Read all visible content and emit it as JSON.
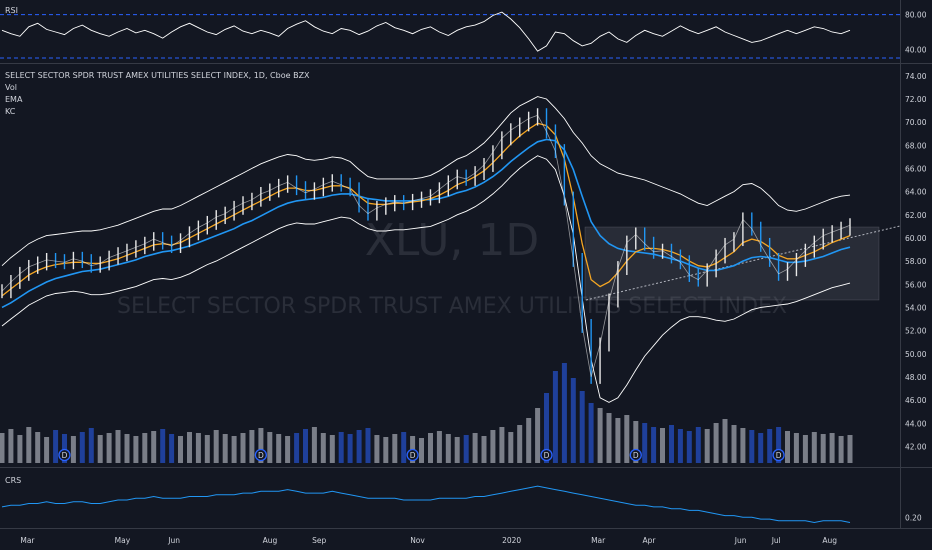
{
  "header": {
    "symbol_line": "SELECT SECTOR SPDR TRUST AMEX UTILITIES SELECT INDEX, 1D, Cboe BZX",
    "studies": [
      "Vol",
      "EMA",
      "KC"
    ],
    "rsi_label": "RSI",
    "crs_label": "CRS"
  },
  "watermark": {
    "ticker": "XLU, 1D",
    "name": "SELECT SECTOR SPDR TRUST AMEX UTILITIES SELECT INDEX"
  },
  "colors": {
    "background": "#131722",
    "price_bar": "#e8e8e8",
    "price_bar_down": "#2196f3",
    "ema_fast": "#f5a623",
    "ema_slow": "#2196f3",
    "keltner": "#ffffff",
    "rsi_line": "#ffffff",
    "crs_line": "#2196f3",
    "volume_up": "#cfd3dc",
    "volume_down": "#2962ff",
    "dividend_marker": "#2962ff"
  },
  "chart_data": [
    {
      "type": "line",
      "name": "RSI pane",
      "y_ticks": [
        "80.00",
        "40.00"
      ],
      "ylim": [
        30,
        90
      ],
      "reference_levels": [
        80,
        30
      ],
      "series": [
        {
          "values": [
            62,
            58,
            55,
            66,
            70,
            63,
            60,
            57,
            64,
            68,
            62,
            58,
            55,
            60,
            64,
            59,
            62,
            58,
            53,
            60,
            66,
            70,
            65,
            60,
            57,
            63,
            67,
            61,
            58,
            62,
            59,
            55,
            64,
            69,
            73,
            66,
            61,
            58,
            64,
            62,
            57,
            61,
            67,
            71,
            65,
            62,
            58,
            63,
            66,
            60,
            56,
            62,
            66,
            68,
            72,
            79,
            83,
            75,
            65,
            52,
            38,
            44,
            60,
            58,
            50,
            44,
            47,
            55,
            60,
            52,
            48,
            56,
            62,
            58,
            55,
            61,
            67,
            62,
            58,
            62,
            66,
            60,
            56,
            52,
            48,
            50,
            54,
            58,
            62,
            58,
            62,
            66,
            64,
            60,
            58,
            62
          ]
        }
      ]
    },
    {
      "type": "line",
      "name": "Price pane",
      "x_ticks": [
        "Mar",
        "May",
        "Jun",
        "Aug",
        "Sep",
        "Nov",
        "2020",
        "Mar",
        "Apr",
        "Jun",
        "Jul",
        "Aug"
      ],
      "y_ticks": [
        "74.00",
        "72.00",
        "70.00",
        "68.00",
        "66.00",
        "64.00",
        "62.00",
        "60.00",
        "58.00",
        "56.00",
        "54.00",
        "52.00",
        "50.00",
        "48.00",
        "46.00",
        "44.00",
        "42.00"
      ],
      "ylim": [
        41,
        74.5
      ],
      "dividend_marks": [
        "D",
        "D",
        "D",
        "D",
        "D",
        "D"
      ],
      "series": [
        {
          "name": "XLU",
          "values": [
            55.4,
            56.2,
            56.9,
            57.5,
            57.8,
            58.1,
            58.0,
            57.9,
            58.2,
            58.0,
            57.6,
            57.8,
            58.3,
            58.6,
            58.9,
            59.2,
            59.5,
            59.9,
            59.6,
            59.3,
            59.8,
            60.4,
            60.9,
            61.3,
            61.8,
            62.1,
            62.6,
            63.0,
            63.3,
            63.8,
            64.1,
            64.5,
            64.8,
            64.3,
            63.9,
            64.2,
            64.6,
            64.9,
            64.6,
            64.2,
            62.8,
            62.1,
            62.6,
            62.9,
            63.1,
            63.0,
            63.2,
            63.4,
            63.6,
            64.2,
            64.8,
            65.3,
            65.1,
            65.6,
            66.3,
            67.4,
            68.6,
            69.3,
            69.8,
            70.3,
            70.6,
            69.2,
            67.5,
            63.4,
            58.1,
            52.4,
            48.0,
            50.8,
            54.6,
            57.4,
            59.6,
            60.3,
            59.5,
            58.8,
            58.9,
            58.4,
            57.9,
            56.8,
            56.4,
            57.2,
            58.4,
            59.4,
            59.9,
            61.6,
            60.8,
            59.4,
            58.1,
            56.9,
            57.3,
            58.1,
            58.9,
            59.6,
            60.2,
            60.5,
            60.8,
            61.1
          ]
        },
        {
          "name": "EMA fast",
          "values": [
            55.0,
            55.6,
            56.2,
            56.8,
            57.2,
            57.5,
            57.7,
            57.8,
            57.9,
            57.9,
            57.8,
            57.8,
            58.0,
            58.2,
            58.5,
            58.8,
            59.1,
            59.4,
            59.5,
            59.4,
            59.6,
            60.0,
            60.4,
            60.8,
            61.2,
            61.6,
            62.0,
            62.4,
            62.8,
            63.2,
            63.6,
            64.0,
            64.3,
            64.3,
            64.1,
            64.1,
            64.3,
            64.5,
            64.5,
            64.3,
            63.6,
            63.0,
            62.9,
            62.9,
            63.0,
            63.0,
            63.1,
            63.2,
            63.4,
            63.7,
            64.1,
            64.6,
            64.9,
            65.3,
            65.8,
            66.5,
            67.3,
            68.1,
            68.8,
            69.4,
            69.9,
            69.7,
            68.9,
            66.8,
            63.5,
            59.5,
            56.4,
            55.8,
            56.2,
            57.0,
            58.0,
            58.8,
            59.1,
            59.1,
            59.0,
            58.8,
            58.5,
            58.0,
            57.6,
            57.5,
            57.8,
            58.3,
            58.8,
            59.6,
            59.9,
            59.7,
            59.2,
            58.5,
            58.2,
            58.2,
            58.5,
            58.8,
            59.2,
            59.6,
            59.9,
            60.2
          ]
        },
        {
          "name": "EMA slow",
          "values": [
            54.0,
            54.4,
            54.9,
            55.4,
            55.8,
            56.2,
            56.5,
            56.7,
            56.9,
            57.1,
            57.2,
            57.3,
            57.5,
            57.7,
            57.9,
            58.1,
            58.4,
            58.6,
            58.8,
            58.9,
            59.1,
            59.3,
            59.6,
            59.9,
            60.2,
            60.5,
            60.8,
            61.2,
            61.5,
            61.9,
            62.3,
            62.7,
            63.0,
            63.2,
            63.3,
            63.4,
            63.5,
            63.7,
            63.8,
            63.8,
            63.6,
            63.4,
            63.3,
            63.2,
            63.2,
            63.2,
            63.2,
            63.3,
            63.3,
            63.4,
            63.6,
            63.9,
            64.1,
            64.4,
            64.8,
            65.3,
            65.9,
            66.6,
            67.2,
            67.8,
            68.3,
            68.5,
            68.4,
            67.6,
            65.9,
            63.6,
            61.4,
            60.2,
            59.5,
            59.1,
            58.9,
            58.8,
            58.7,
            58.6,
            58.4,
            58.2,
            58.0,
            57.7,
            57.4,
            57.2,
            57.2,
            57.4,
            57.6,
            58.0,
            58.3,
            58.4,
            58.3,
            58.1,
            57.9,
            57.9,
            58.0,
            58.2,
            58.4,
            58.7,
            59.0,
            59.2
          ]
        },
        {
          "name": "KC upper",
          "values": [
            57.6,
            58.3,
            58.9,
            59.5,
            59.9,
            60.2,
            60.3,
            60.4,
            60.5,
            60.6,
            60.6,
            60.7,
            60.9,
            61.1,
            61.4,
            61.7,
            62.0,
            62.3,
            62.5,
            62.5,
            62.8,
            63.2,
            63.6,
            64.0,
            64.4,
            64.8,
            65.2,
            65.6,
            66.0,
            66.4,
            66.7,
            67.0,
            67.2,
            67.1,
            66.8,
            66.7,
            66.8,
            67.0,
            66.9,
            66.6,
            65.9,
            65.3,
            65.1,
            65.1,
            65.1,
            65.1,
            65.1,
            65.2,
            65.4,
            65.8,
            66.3,
            66.8,
            67.1,
            67.6,
            68.2,
            69.0,
            69.9,
            70.8,
            71.4,
            71.8,
            72.2,
            72.0,
            71.2,
            70.3,
            69.1,
            68.2,
            67.1,
            66.4,
            66.0,
            65.6,
            65.4,
            65.2,
            65.0,
            64.7,
            64.4,
            64.1,
            63.8,
            63.4,
            63.0,
            62.8,
            63.2,
            63.6,
            64.0,
            64.6,
            64.7,
            64.3,
            63.6,
            62.8,
            62.4,
            62.3,
            62.5,
            62.8,
            63.1,
            63.4,
            63.6,
            63.7
          ]
        },
        {
          "name": "KC lower",
          "values": [
            52.4,
            53.0,
            53.6,
            54.2,
            54.6,
            55.0,
            55.2,
            55.3,
            55.4,
            55.3,
            55.1,
            55.1,
            55.2,
            55.4,
            55.6,
            55.8,
            56.1,
            56.4,
            56.5,
            56.4,
            56.6,
            56.9,
            57.3,
            57.7,
            58.0,
            58.4,
            58.8,
            59.2,
            59.6,
            60.0,
            60.4,
            60.8,
            61.1,
            61.3,
            61.2,
            61.2,
            61.4,
            61.6,
            61.8,
            61.7,
            61.2,
            60.8,
            60.6,
            60.6,
            60.7,
            60.7,
            60.8,
            60.9,
            61.0,
            61.3,
            61.6,
            62.0,
            62.3,
            62.7,
            63.2,
            63.8,
            64.5,
            65.3,
            66.0,
            66.6,
            67.1,
            66.8,
            65.9,
            63.6,
            60.3,
            54.8,
            49.5,
            46.2,
            45.8,
            46.2,
            47.3,
            48.6,
            49.8,
            50.7,
            51.6,
            52.3,
            52.9,
            53.2,
            53.2,
            53.1,
            52.9,
            52.8,
            53.0,
            53.4,
            53.8,
            54.0,
            54.1,
            54.2,
            54.3,
            54.5,
            54.8,
            55.1,
            55.4,
            55.7,
            55.9,
            56.1
          ]
        }
      ]
    },
    {
      "type": "bar",
      "name": "Volume",
      "values": [
        0.3,
        0.34,
        0.28,
        0.36,
        0.31,
        0.26,
        0.33,
        0.29,
        0.27,
        0.31,
        0.35,
        0.28,
        0.3,
        0.33,
        0.29,
        0.27,
        0.3,
        0.32,
        0.34,
        0.29,
        0.27,
        0.31,
        0.3,
        0.28,
        0.33,
        0.29,
        0.27,
        0.3,
        0.33,
        0.35,
        0.31,
        0.29,
        0.27,
        0.3,
        0.34,
        0.36,
        0.3,
        0.28,
        0.31,
        0.29,
        0.33,
        0.35,
        0.28,
        0.26,
        0.29,
        0.31,
        0.27,
        0.25,
        0.3,
        0.32,
        0.29,
        0.26,
        0.28,
        0.3,
        0.27,
        0.33,
        0.36,
        0.31,
        0.38,
        0.45,
        0.55,
        0.7,
        0.92,
        1.0,
        0.85,
        0.72,
        0.6,
        0.55,
        0.5,
        0.45,
        0.48,
        0.42,
        0.4,
        0.36,
        0.35,
        0.38,
        0.34,
        0.32,
        0.36,
        0.34,
        0.4,
        0.44,
        0.38,
        0.35,
        0.33,
        0.3,
        0.34,
        0.36,
        0.32,
        0.3,
        0.28,
        0.31,
        0.29,
        0.3,
        0.27,
        0.28
      ]
    },
    {
      "type": "line",
      "name": "CRS pane",
      "y_ticks": [
        "0.20"
      ],
      "ylim": [
        0.15,
        0.45
      ],
      "series": [
        {
          "values": [
            0.26,
            0.27,
            0.27,
            0.28,
            0.28,
            0.29,
            0.28,
            0.28,
            0.29,
            0.29,
            0.28,
            0.28,
            0.29,
            0.3,
            0.3,
            0.31,
            0.31,
            0.32,
            0.31,
            0.31,
            0.31,
            0.32,
            0.32,
            0.32,
            0.33,
            0.33,
            0.33,
            0.34,
            0.34,
            0.35,
            0.35,
            0.35,
            0.36,
            0.35,
            0.34,
            0.34,
            0.34,
            0.35,
            0.34,
            0.33,
            0.32,
            0.31,
            0.31,
            0.31,
            0.31,
            0.3,
            0.3,
            0.3,
            0.3,
            0.31,
            0.31,
            0.31,
            0.31,
            0.32,
            0.32,
            0.33,
            0.34,
            0.35,
            0.36,
            0.37,
            0.38,
            0.37,
            0.36,
            0.35,
            0.34,
            0.33,
            0.32,
            0.31,
            0.3,
            0.29,
            0.28,
            0.27,
            0.27,
            0.26,
            0.26,
            0.25,
            0.25,
            0.24,
            0.24,
            0.23,
            0.22,
            0.21,
            0.21,
            0.2,
            0.2,
            0.19,
            0.19,
            0.18,
            0.18,
            0.18,
            0.18,
            0.17,
            0.18,
            0.18,
            0.18,
            0.17
          ]
        }
      ]
    }
  ]
}
